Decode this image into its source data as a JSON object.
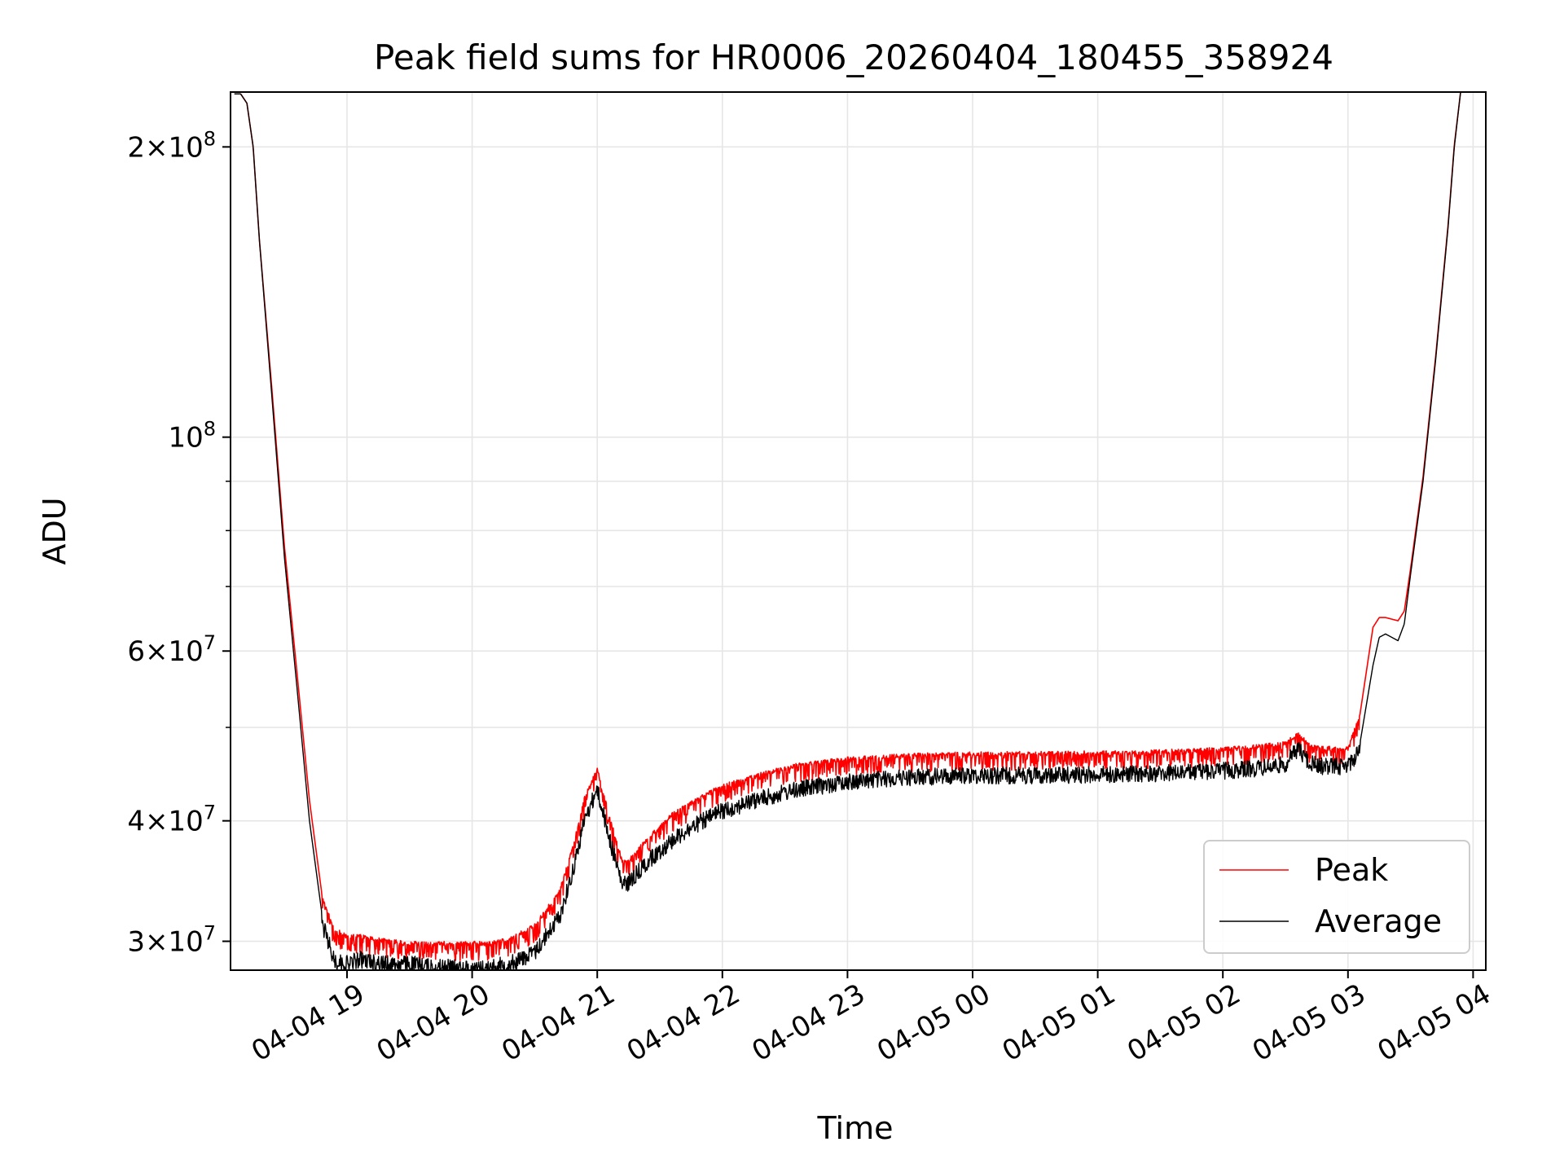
{
  "chart_data": {
    "type": "line",
    "title": "Peak field sums for HR0006_20260404_180455_358924",
    "xlabel": "Time",
    "ylabel": "ADU",
    "yscale": "log",
    "ylim": [
      28000000,
      228000000
    ],
    "xlim": [
      "2026-04-04T18:05",
      "2026-04-05T04:00"
    ],
    "grid": true,
    "legend_position": "lower right",
    "x_ticks": [
      {
        "label": "04-04 19",
        "hour": 19
      },
      {
        "label": "04-04 20",
        "hour": 20
      },
      {
        "label": "04-04 21",
        "hour": 21
      },
      {
        "label": "04-04 22",
        "hour": 22
      },
      {
        "label": "04-04 23",
        "hour": 23
      },
      {
        "label": "04-05 00",
        "hour": 24
      },
      {
        "label": "04-05 01",
        "hour": 25
      },
      {
        "label": "04-05 02",
        "hour": 26
      },
      {
        "label": "04-05 03",
        "hour": 27
      },
      {
        "label": "04-05 04",
        "hour": 28
      }
    ],
    "y_ticks": [
      {
        "value": 30000000,
        "mantissa": "3",
        "exponent": "7"
      },
      {
        "value": 40000000,
        "mantissa": "4",
        "exponent": "7"
      },
      {
        "value": 60000000,
        "mantissa": "6",
        "exponent": "7"
      },
      {
        "value": 100000000,
        "mantissa": "",
        "exponent": "8"
      },
      {
        "value": 200000000,
        "mantissa": "2",
        "exponent": "8"
      }
    ],
    "y_minor_ticks": [
      50000000,
      70000000,
      80000000,
      90000000
    ],
    "x_hours": [
      18.1,
      18.15,
      18.2,
      18.25,
      18.3,
      18.4,
      18.5,
      18.6,
      18.7,
      18.8,
      18.9,
      19.0,
      19.1,
      19.3,
      19.5,
      19.7,
      19.9,
      20.1,
      20.3,
      20.5,
      20.7,
      20.8,
      20.9,
      21.0,
      21.1,
      21.2,
      21.25,
      21.4,
      21.6,
      21.8,
      22.0,
      22.3,
      22.6,
      23.0,
      23.5,
      24.0,
      24.5,
      25.0,
      25.5,
      26.0,
      26.3,
      26.5,
      26.6,
      26.7,
      26.8,
      27.0,
      27.1,
      27.2,
      27.25,
      27.3,
      27.4,
      27.45,
      27.5,
      27.6,
      27.7,
      27.8,
      27.85,
      27.9,
      27.95,
      28.0
    ],
    "series": [
      {
        "name": "Average",
        "color": "#000000",
        "values": [
          227000000,
          227000000,
          222000000,
          200000000,
          160000000,
          110000000,
          75000000,
          55000000,
          40000000,
          32000000,
          29200000,
          29000000,
          29300000,
          29000000,
          29000000,
          28800000,
          28700000,
          28700000,
          29000000,
          29800000,
          32500000,
          36000000,
          41000000,
          44000000,
          39000000,
          35000000,
          35200000,
          37000000,
          39000000,
          40500000,
          41800000,
          43000000,
          44000000,
          44800000,
          45300000,
          45500000,
          45500000,
          45600000,
          45700000,
          46000000,
          46300000,
          46700000,
          48500000,
          46800000,
          46500000,
          46500000,
          48500000,
          58000000,
          62000000,
          62500000,
          61500000,
          64000000,
          72000000,
          90000000,
          120000000,
          165000000,
          200000000,
          228000000,
          228000000,
          228000000
        ]
      },
      {
        "name": "Peak",
        "color": "#ff0000",
        "values": [
          227000000,
          227000000,
          222000000,
          200000000,
          160000000,
          112000000,
          77000000,
          57000000,
          42000000,
          33500000,
          31000000,
          30500000,
          30500000,
          30200000,
          30000000,
          30000000,
          30000000,
          30000000,
          30300000,
          31300000,
          34000000,
          37500000,
          42500000,
          45500000,
          40500000,
          36500000,
          36500000,
          38500000,
          40800000,
          42300000,
          43700000,
          44900000,
          45900000,
          46600000,
          47000000,
          47200000,
          47200000,
          47300000,
          47400000,
          47700000,
          48000000,
          48400000,
          49500000,
          48000000,
          47800000,
          47800000,
          52000000,
          63500000,
          65000000,
          65000000,
          64500000,
          66000000,
          73000000,
          91000000,
          121000000,
          166000000,
          201000000,
          228000000,
          228000000,
          228000000
        ]
      }
    ],
    "noise_band": {
      "start_hour": 18.8,
      "end_hour": 27.1
    }
  }
}
